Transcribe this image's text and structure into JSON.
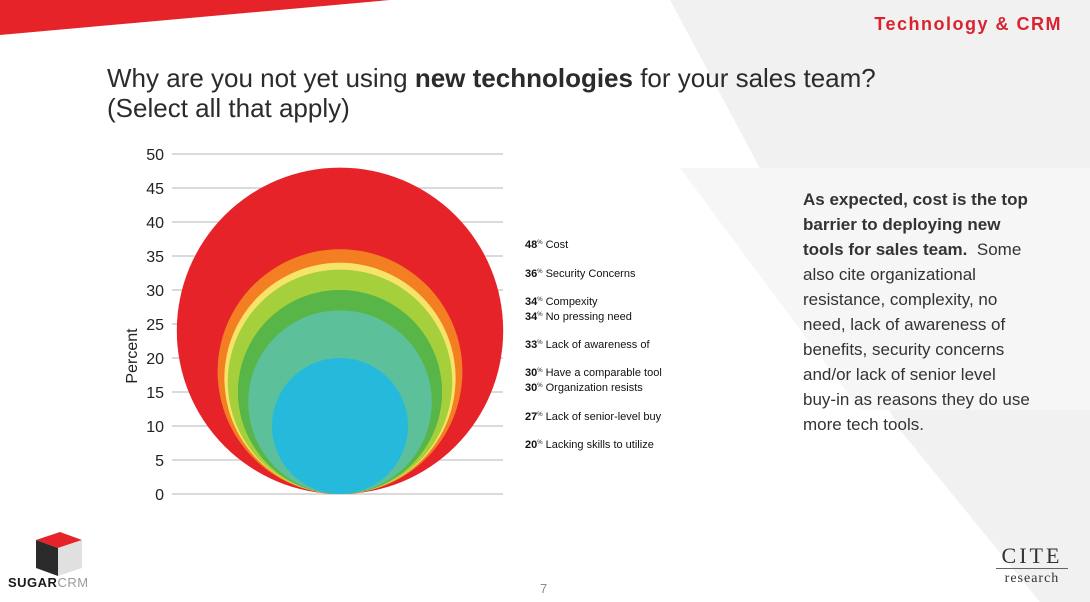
{
  "header": {
    "section_label": "Technology & CRM"
  },
  "title": {
    "line1_pre": "Why are you not yet using ",
    "line1_bold": "new technologies",
    "line1_post": " for your sales team?",
    "line2": "(Select all that apply)"
  },
  "commentary": {
    "bold": "As expected, cost is the top barrier to deploying new tools for sales team",
    "bold_end": ".",
    "rest": "Some also cite organizational resistance, complexity, no need, lack of awareness of benefits, security concerns and/or lack of senior level buy-in as reasons they do use more tech tools."
  },
  "footer": {
    "page_number": "7",
    "left_logo_part1": "SUGAR",
    "left_logo_part2": "CRM",
    "right_logo_line1": "CITE",
    "right_logo_line2": "research"
  },
  "chart_data": {
    "type": "nested-circle",
    "ylabel": "Percent",
    "ylim": [
      0,
      50
    ],
    "yticks": [
      0,
      5,
      10,
      15,
      20,
      25,
      30,
      35,
      40,
      45,
      50
    ],
    "grid": true,
    "percent_suffix": "%",
    "items": [
      {
        "label": "Cost",
        "value": 48,
        "color": "#e52329"
      },
      {
        "label": "Security Concerns",
        "value": 36,
        "color": "#f37f22"
      },
      {
        "label": "Compexity",
        "value": 34,
        "color": "#f7a82a"
      },
      {
        "label": "No pressing need",
        "value": 34,
        "color": "#f7e36a"
      },
      {
        "label": "Lack of awareness of",
        "value": 33,
        "color": "#a6cf3c"
      },
      {
        "label": "Have a comparable tool",
        "value": 30,
        "color": "#58b648"
      },
      {
        "label": "Organization resists",
        "value": 30,
        "color": "#58b648"
      },
      {
        "label": "Lack of senior-level buy",
        "value": 27,
        "color": "#5cc19b"
      },
      {
        "label": "Lacking skills to utilize",
        "value": 20,
        "color": "#25b9dc"
      }
    ]
  }
}
